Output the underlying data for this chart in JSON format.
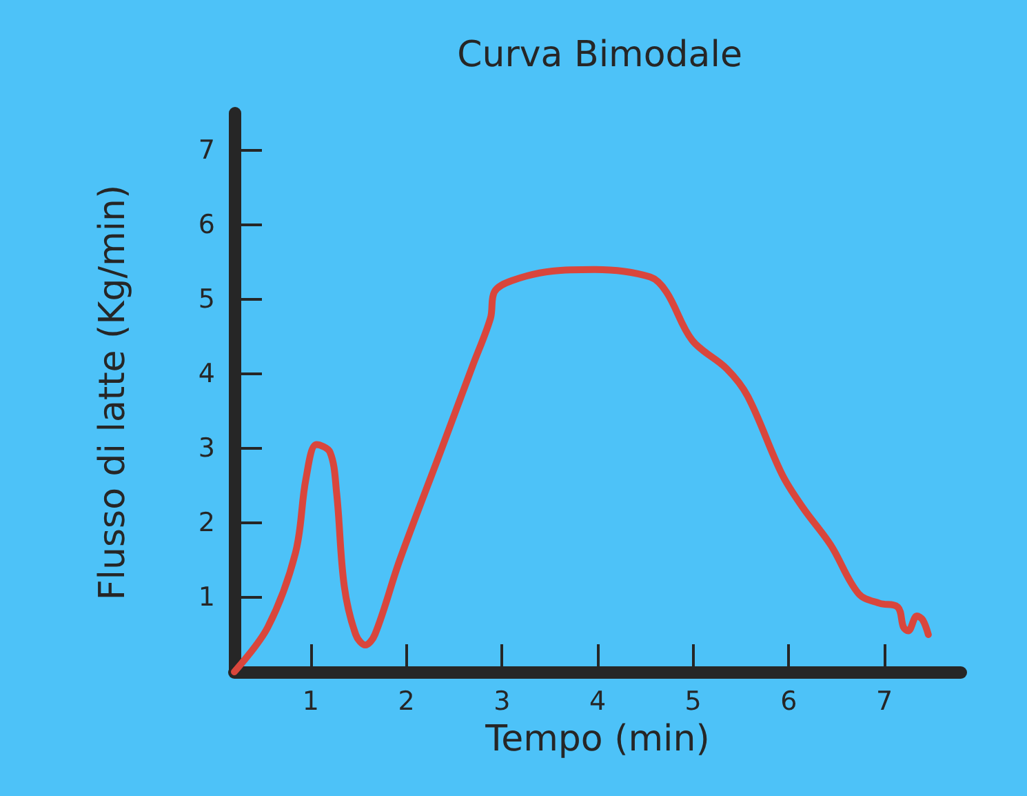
{
  "chart_data": {
    "type": "line",
    "title": "Curva Bimodale",
    "xlabel": "Tempo (min)",
    "ylabel": "Flusso di latte (Kg/min)",
    "xlim": [
      0.2,
      7.8
    ],
    "ylim": [
      0,
      7.5
    ],
    "xticks": [
      1,
      2,
      3,
      4,
      5,
      6,
      7
    ],
    "yticks": [
      1,
      2,
      3,
      4,
      5,
      6,
      7
    ],
    "grid": false,
    "marker": "none",
    "line_style": "solid",
    "series": [
      {
        "color": "#d9463c",
        "x": [
          0.2,
          0.55,
          0.84,
          0.95,
          1.06,
          1.2,
          1.27,
          1.35,
          1.47,
          1.57,
          1.67,
          1.93,
          2.37,
          2.69,
          2.88,
          2.92,
          3.1,
          3.53,
          3.97,
          4.55,
          4.72,
          4.99,
          5.35,
          5.57,
          5.93,
          6.15,
          6.44,
          6.73,
          6.95,
          7.14,
          7.2,
          7.25,
          7.34,
          7.4,
          7.46
        ],
        "values": [
          0,
          0.6,
          1.6,
          2.6,
          3.05,
          2.95,
          2.4,
          1.15,
          0.5,
          0.36,
          0.5,
          1.5,
          3.0,
          4.1,
          4.75,
          5.1,
          5.25,
          5.38,
          5.4,
          5.3,
          5.1,
          4.45,
          4.07,
          3.7,
          2.65,
          2.2,
          1.7,
          1.05,
          0.92,
          0.87,
          0.6,
          0.55,
          0.75,
          0.7,
          0.5
        ]
      }
    ]
  }
}
